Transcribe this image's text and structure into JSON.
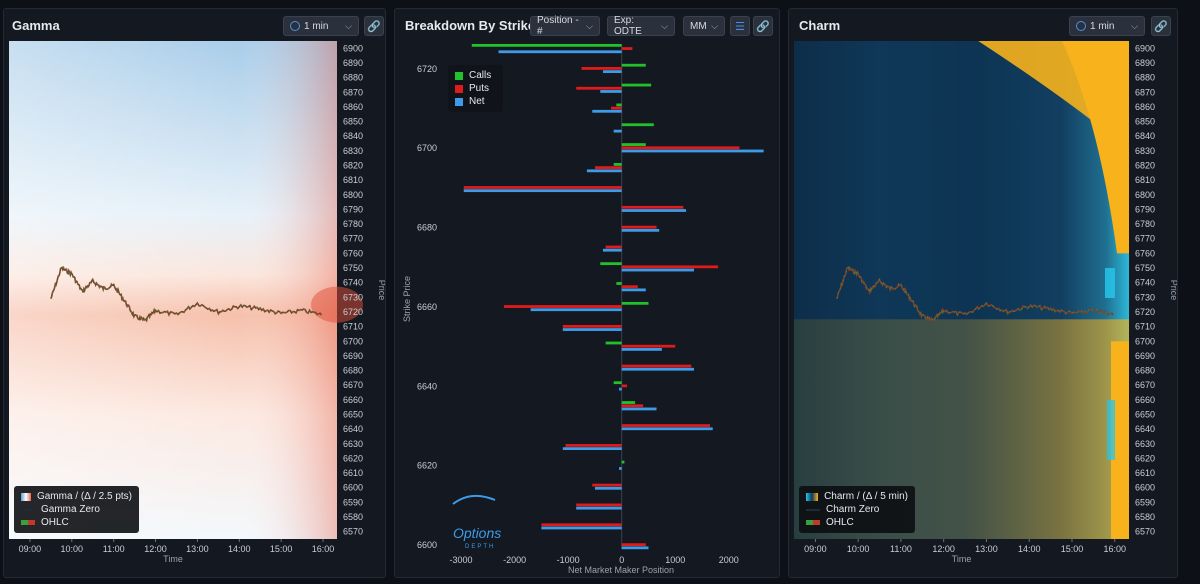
{
  "panels": {
    "gamma": {
      "title": "Gamma",
      "interval": "1 min",
      "legend": [
        "Gamma / (Δ / 2.5 pts)",
        "Gamma Zero",
        "OHLC"
      ],
      "xlabel": "Time",
      "ylabel": "Price"
    },
    "strike": {
      "title": "Breakdown By Strike",
      "position_label": "Position - #",
      "exp_label": "Exp: ODTE",
      "mm_label": "MM",
      "legend": [
        "Calls",
        "Puts",
        "Net"
      ],
      "logo_line1": "Options",
      "logo_line2": "DEPTH"
    },
    "charm": {
      "title": "Charm",
      "interval": "1 min",
      "legend": [
        "Charm / (Δ / 5 min)",
        "Charm Zero",
        "OHLC"
      ],
      "xlabel": "Time",
      "ylabel": "Price"
    }
  },
  "colors": {
    "calls": "#22c02a",
    "puts": "#e01b1b",
    "net": "#3d9be8",
    "gamma_pos": "#e8694a",
    "gamma_neg": "#5a9fd4",
    "charm_pos": "#f7b21c",
    "charm_neg": "#0e3b5c",
    "charm_edge": "#27c4ea"
  },
  "chart_data": [
    {
      "type": "heatmap",
      "name": "gamma",
      "xlabel": "Time",
      "ylabel": "Price",
      "x_ticks": [
        "09:00",
        "10:00",
        "11:00",
        "12:00",
        "13:00",
        "14:00",
        "15:00",
        "16:00"
      ],
      "y_ticks": [
        6900,
        6890,
        6880,
        6870,
        6860,
        6850,
        6840,
        6830,
        6820,
        6810,
        6800,
        6790,
        6780,
        6770,
        6760,
        6750,
        6740,
        6730,
        6720,
        6710,
        6700,
        6690,
        6680,
        6670,
        6660,
        6650,
        6640,
        6630,
        6620,
        6610,
        6600,
        6590,
        6580,
        6570
      ],
      "ylim": [
        6565,
        6905
      ],
      "price_path": [
        {
          "t": "09:30",
          "p": 6729
        },
        {
          "t": "09:45",
          "p": 6750
        },
        {
          "t": "10:00",
          "p": 6746
        },
        {
          "t": "10:15",
          "p": 6734
        },
        {
          "t": "10:30",
          "p": 6741
        },
        {
          "t": "10:45",
          "p": 6736
        },
        {
          "t": "11:00",
          "p": 6738
        },
        {
          "t": "11:15",
          "p": 6728
        },
        {
          "t": "11:30",
          "p": 6717
        },
        {
          "t": "11:45",
          "p": 6714
        },
        {
          "t": "12:00",
          "p": 6721
        },
        {
          "t": "12:30",
          "p": 6718
        },
        {
          "t": "13:00",
          "p": 6726
        },
        {
          "t": "13:30",
          "p": 6720
        },
        {
          "t": "14:00",
          "p": 6724
        },
        {
          "t": "14:30",
          "p": 6722
        },
        {
          "t": "15:00",
          "p": 6719
        },
        {
          "t": "15:30",
          "p": 6721
        },
        {
          "t": "16:00",
          "p": 6718
        }
      ]
    },
    {
      "type": "bar",
      "name": "breakdown_by_strike",
      "orientation": "horizontal",
      "xlabel": "Net Market Maker Position",
      "ylabel": "Strike Price",
      "xlim": [
        -3300,
        2900
      ],
      "x_ticks": [
        -3000,
        -2000,
        -1000,
        0,
        1000,
        2000
      ],
      "ylim": [
        6599,
        6726
      ],
      "y_ticks": [
        6600,
        6620,
        6640,
        6660,
        6680,
        6700,
        6720
      ],
      "legend_position": "top-left",
      "strikes": [
        6725,
        6720,
        6715,
        6710,
        6705,
        6700,
        6695,
        6690,
        6685,
        6680,
        6675,
        6670,
        6665,
        6660,
        6655,
        6650,
        6645,
        6640,
        6635,
        6630,
        6625,
        6620,
        6615,
        6610,
        6605,
        6600
      ],
      "series": [
        {
          "name": "Calls",
          "values": [
            -2800,
            450,
            550,
            -100,
            600,
            450,
            -150,
            0,
            0,
            0,
            0,
            -400,
            -100,
            500,
            0,
            -300,
            0,
            -150,
            250,
            0,
            0,
            50,
            0,
            0,
            0,
            0
          ]
        },
        {
          "name": "Puts",
          "values": [
            200,
            -750,
            -850,
            -200,
            0,
            2200,
            -500,
            -2950,
            1150,
            650,
            -300,
            1800,
            300,
            -2200,
            -1100,
            1000,
            1300,
            100,
            400,
            1650,
            -1050,
            0,
            -550,
            -850,
            -1500,
            450
          ]
        },
        {
          "name": "Net",
          "values": [
            -2300,
            -350,
            -400,
            -550,
            -150,
            2650,
            -650,
            -2950,
            1200,
            700,
            -350,
            1350,
            450,
            -1700,
            -1100,
            750,
            1350,
            -50,
            650,
            1700,
            -1100,
            -50,
            -500,
            -850,
            -1500,
            500
          ]
        }
      ]
    },
    {
      "type": "heatmap",
      "name": "charm",
      "xlabel": "Time",
      "ylabel": "Price",
      "x_ticks": [
        "09:00",
        "10:00",
        "11:00",
        "12:00",
        "13:00",
        "14:00",
        "15:00",
        "16:00"
      ],
      "y_ticks": [
        6900,
        6890,
        6880,
        6870,
        6860,
        6850,
        6840,
        6830,
        6820,
        6810,
        6800,
        6790,
        6780,
        6770,
        6760,
        6750,
        6740,
        6730,
        6720,
        6710,
        6700,
        6690,
        6680,
        6670,
        6660,
        6650,
        6640,
        6630,
        6620,
        6610,
        6600,
        6590,
        6580,
        6570
      ],
      "ylim": [
        6565,
        6905
      ]
    }
  ]
}
